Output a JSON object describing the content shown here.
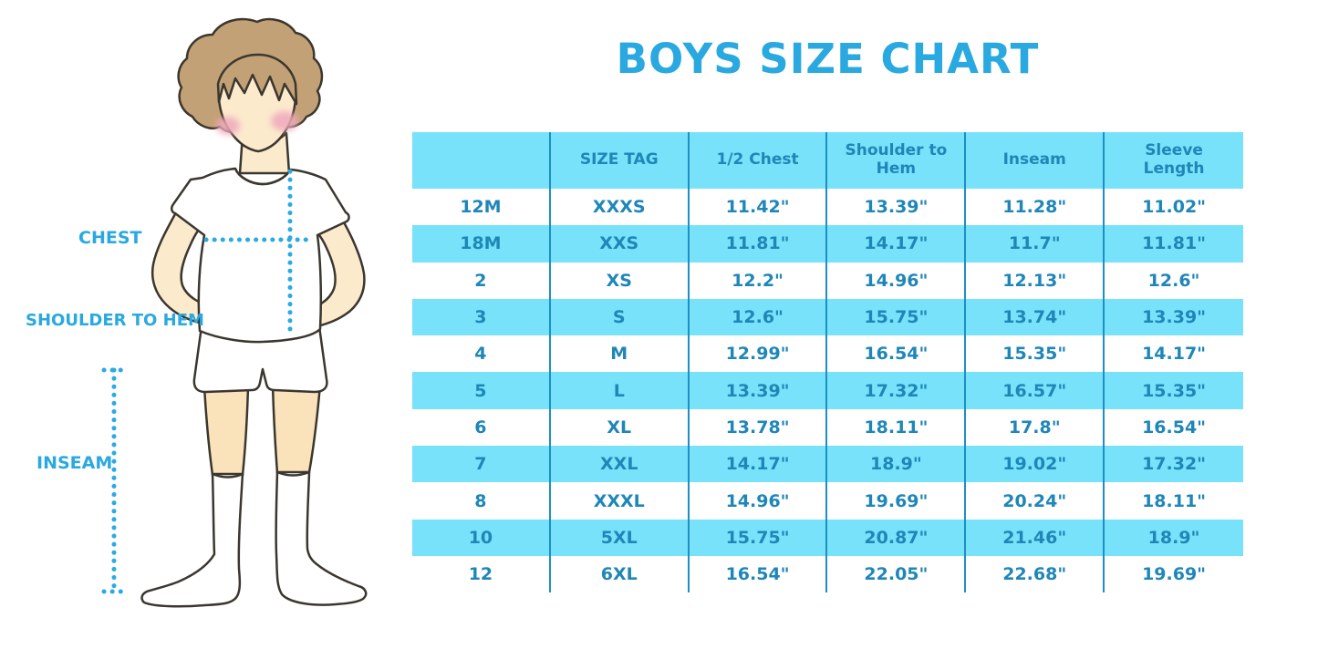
{
  "title": "BOYS SIZE CHART",
  "figure_labels": {
    "chest": "CHEST",
    "shoulder_to_hem": "SHOULDER TO HEM",
    "inseam": "INSEAM"
  },
  "colors": {
    "title_color": "#29A9E0",
    "table_text": "#1F86B8",
    "stripe": "#77E2FA",
    "line": "#1E8FC4",
    "dotted": "#2BAAE2",
    "hair": "#C3A176",
    "skin": "#FCEACD",
    "leg_skin": "#FAE3BA",
    "blush": "#EFA9BC",
    "outline": "#3B372F"
  },
  "chart_data": {
    "type": "table",
    "title": "BOYS SIZE CHART",
    "columns": [
      "",
      "SIZE TAG",
      "1/2 Chest",
      "Shoulder to Hem",
      "Inseam",
      "Sleeve Length"
    ],
    "rows": [
      [
        "12M",
        "XXXS",
        "11.42\"",
        "13.39\"",
        "11.28\"",
        "11.02\""
      ],
      [
        "18M",
        "XXS",
        "11.81\"",
        "14.17\"",
        "11.7\"",
        "11.81\""
      ],
      [
        "2",
        "XS",
        "12.2\"",
        "14.96\"",
        "12.13\"",
        "12.6\""
      ],
      [
        "3",
        "S",
        "12.6\"",
        "15.75\"",
        "13.74\"",
        "13.39\""
      ],
      [
        "4",
        "M",
        "12.99\"",
        "16.54\"",
        "15.35\"",
        "14.17\""
      ],
      [
        "5",
        "L",
        "13.39\"",
        "17.32\"",
        "16.57\"",
        "15.35\""
      ],
      [
        "6",
        "XL",
        "13.78\"",
        "18.11\"",
        "17.8\"",
        "16.54\""
      ],
      [
        "7",
        "XXL",
        "14.17\"",
        "18.9\"",
        "19.02\"",
        "17.32\""
      ],
      [
        "8",
        "XXXL",
        "14.96\"",
        "19.69\"",
        "20.24\"",
        "18.11\""
      ],
      [
        "10",
        "5XL",
        "15.75\"",
        "20.87\"",
        "21.46\"",
        "18.9\""
      ],
      [
        "12",
        "6XL",
        "16.54\"",
        "22.05\"",
        "22.68\"",
        "19.69\""
      ]
    ],
    "layout": {
      "grid": "off",
      "row_striping": "alternating white / light blue",
      "header_background": "light blue",
      "column_separators": "vertical blue lines only"
    }
  }
}
